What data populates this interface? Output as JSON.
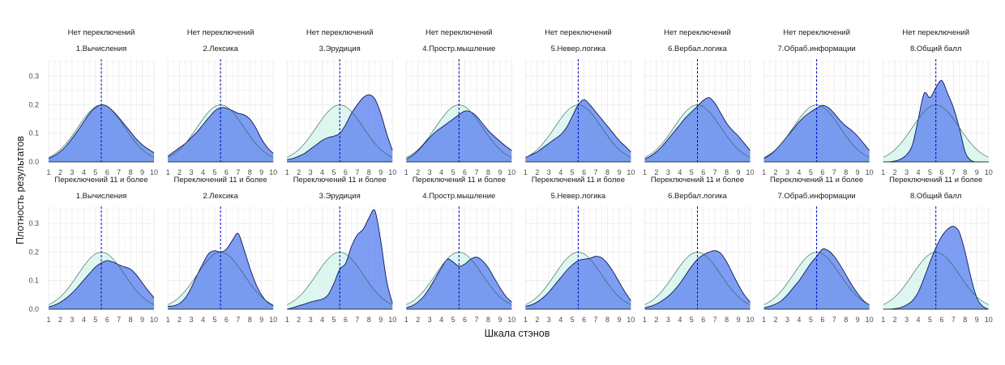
{
  "chart_data": {
    "type": "area",
    "xlabel": "Шкала стэнов",
    "ylabel": "Плотность результатов",
    "xlim": [
      1,
      10
    ],
    "ylim": [
      0,
      0.36
    ],
    "x_ticks": [
      "1",
      "2",
      "3",
      "4",
      "5",
      "6",
      "7",
      "8",
      "9",
      "10"
    ],
    "y_ticks": [
      "0.0",
      "0.1",
      "0.2",
      "0.3"
    ],
    "y_tick_values": [
      0,
      0.1,
      0.2,
      0.3
    ],
    "grid": true,
    "reference_line": {
      "x": 5.5,
      "style": "dashed",
      "color": "#0000cc"
    },
    "reference_curve": {
      "type": "normal",
      "mean": 5.5,
      "sd": 2,
      "fill": "#d9f5ee",
      "stroke": "#2b5d52"
    },
    "observed_fill": "#5b82ee",
    "observed_stroke": "#0c1a5c",
    "x_grid": [
      1,
      1.5,
      2,
      2.5,
      3,
      3.5,
      4,
      4.5,
      5,
      5.5,
      6,
      6.5,
      7,
      7.5,
      8,
      8.5,
      9,
      9.5,
      10
    ],
    "rows": [
      {
        "strip": "Нет переключений",
        "panels": [
          {
            "name": "1.Вычисления",
            "values": [
              0.012,
              0.022,
              0.036,
              0.056,
              0.082,
              0.11,
              0.14,
              0.17,
              0.19,
              0.2,
              0.195,
              0.178,
              0.155,
              0.13,
              0.105,
              0.08,
              0.06,
              0.045,
              0.032
            ]
          },
          {
            "name": "2.Лексика",
            "values": [
              0.02,
              0.035,
              0.05,
              0.065,
              0.085,
              0.105,
              0.13,
              0.155,
              0.178,
              0.19,
              0.188,
              0.18,
              0.17,
              0.165,
              0.15,
              0.12,
              0.08,
              0.05,
              0.03
            ]
          },
          {
            "name": "3.Эрудиция",
            "values": [
              0.008,
              0.012,
              0.02,
              0.03,
              0.045,
              0.06,
              0.075,
              0.085,
              0.09,
              0.1,
              0.13,
              0.17,
              0.2,
              0.225,
              0.235,
              0.22,
              0.17,
              0.1,
              0.04
            ]
          },
          {
            "name": "4.Простр.мышление",
            "values": [
              0.01,
              0.022,
              0.04,
              0.062,
              0.085,
              0.105,
              0.12,
              0.135,
              0.15,
              0.165,
              0.178,
              0.175,
              0.16,
              0.135,
              0.11,
              0.09,
              0.072,
              0.055,
              0.04
            ]
          },
          {
            "name": "5.Невер.логика",
            "values": [
              0.015,
              0.025,
              0.035,
              0.05,
              0.065,
              0.08,
              0.095,
              0.12,
              0.16,
              0.2,
              0.218,
              0.2,
              0.175,
              0.15,
              0.125,
              0.1,
              0.075,
              0.055,
              0.035
            ]
          },
          {
            "name": "6.Вербал.логика",
            "values": [
              0.01,
              0.02,
              0.035,
              0.055,
              0.08,
              0.105,
              0.13,
              0.155,
              0.175,
              0.195,
              0.215,
              0.225,
              0.205,
              0.17,
              0.135,
              0.11,
              0.09,
              0.065,
              0.04
            ]
          },
          {
            "name": "7.Обраб.информации",
            "values": [
              0.012,
              0.024,
              0.042,
              0.065,
              0.09,
              0.115,
              0.14,
              0.16,
              0.175,
              0.188,
              0.198,
              0.19,
              0.17,
              0.145,
              0.125,
              0.11,
              0.09,
              0.065,
              0.04
            ]
          },
          {
            "name": "8.Общий балл",
            "values": [
              0.0,
              0.0,
              0.003,
              0.01,
              0.025,
              0.06,
              0.15,
              0.24,
              0.225,
              0.26,
              0.285,
              0.24,
              0.19,
              0.12,
              0.035,
              0.005,
              0.0,
              0.0,
              0.0
            ]
          }
        ]
      },
      {
        "strip": "Переключений 11 и более",
        "panels": [
          {
            "name": "1.Вычисления",
            "values": [
              0.008,
              0.014,
              0.024,
              0.038,
              0.056,
              0.078,
              0.102,
              0.125,
              0.148,
              0.162,
              0.17,
              0.165,
              0.155,
              0.148,
              0.14,
              0.12,
              0.092,
              0.065,
              0.04
            ]
          },
          {
            "name": "2.Лексика",
            "values": [
              0.01,
              0.012,
              0.02,
              0.04,
              0.075,
              0.12,
              0.16,
              0.195,
              0.205,
              0.2,
              0.21,
              0.24,
              0.265,
              0.21,
              0.145,
              0.09,
              0.05,
              0.025,
              0.012
            ]
          },
          {
            "name": "3.Эрудиция",
            "values": [
              0.0,
              0.005,
              0.012,
              0.018,
              0.025,
              0.03,
              0.035,
              0.05,
              0.09,
              0.14,
              0.16,
              0.22,
              0.26,
              0.28,
              0.32,
              0.345,
              0.24,
              0.1,
              0.02
            ]
          },
          {
            "name": "4.Простр.мышление",
            "values": [
              0.005,
              0.012,
              0.025,
              0.045,
              0.075,
              0.11,
              0.145,
              0.175,
              0.165,
              0.15,
              0.158,
              0.175,
              0.182,
              0.17,
              0.145,
              0.11,
              0.075,
              0.045,
              0.025
            ]
          },
          {
            "name": "5.Невер.логика",
            "values": [
              0.01,
              0.015,
              0.025,
              0.04,
              0.06,
              0.085,
              0.11,
              0.135,
              0.155,
              0.17,
              0.175,
              0.178,
              0.185,
              0.18,
              0.16,
              0.13,
              0.095,
              0.06,
              0.03
            ]
          },
          {
            "name": "6.Вербал.логика",
            "values": [
              0.005,
              0.01,
              0.018,
              0.03,
              0.045,
              0.065,
              0.09,
              0.12,
              0.15,
              0.175,
              0.19,
              0.2,
              0.205,
              0.195,
              0.165,
              0.125,
              0.085,
              0.05,
              0.025
            ]
          },
          {
            "name": "7.Обраб.информации",
            "values": [
              0.005,
              0.01,
              0.018,
              0.03,
              0.05,
              0.075,
              0.1,
              0.13,
              0.16,
              0.185,
              0.21,
              0.205,
              0.185,
              0.155,
              0.12,
              0.085,
              0.055,
              0.03,
              0.015
            ]
          },
          {
            "name": "8.Общий балл",
            "values": [
              0.0,
              0.0,
              0.002,
              0.006,
              0.015,
              0.03,
              0.06,
              0.11,
              0.165,
              0.215,
              0.255,
              0.28,
              0.29,
              0.27,
              0.2,
              0.11,
              0.04,
              0.01,
              0.0
            ]
          }
        ]
      }
    ]
  }
}
